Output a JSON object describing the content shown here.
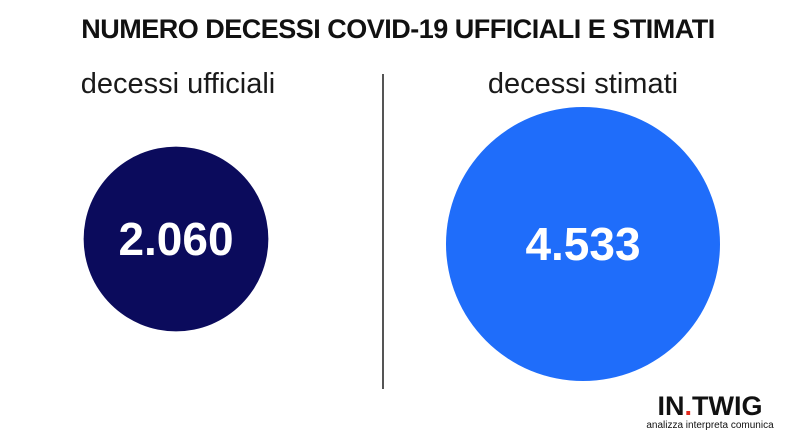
{
  "chart_data": {
    "type": "bubble",
    "title": "NUMERO DECESSI COVID-19 UFFICIALI E STIMATI",
    "categories": [
      "decessi ufficiali",
      "decessi stimati"
    ],
    "values": [
      2060,
      4533
    ],
    "value_labels": [
      "2.060",
      "4.533"
    ],
    "colors": [
      "#0b0b5c",
      "#1f6dfa"
    ]
  },
  "logo": {
    "prefix": "IN",
    "dot": ".",
    "suffix": "TWIG",
    "tagline": "analizza interpreta comunica",
    "accent_color": "#e32a1d"
  }
}
